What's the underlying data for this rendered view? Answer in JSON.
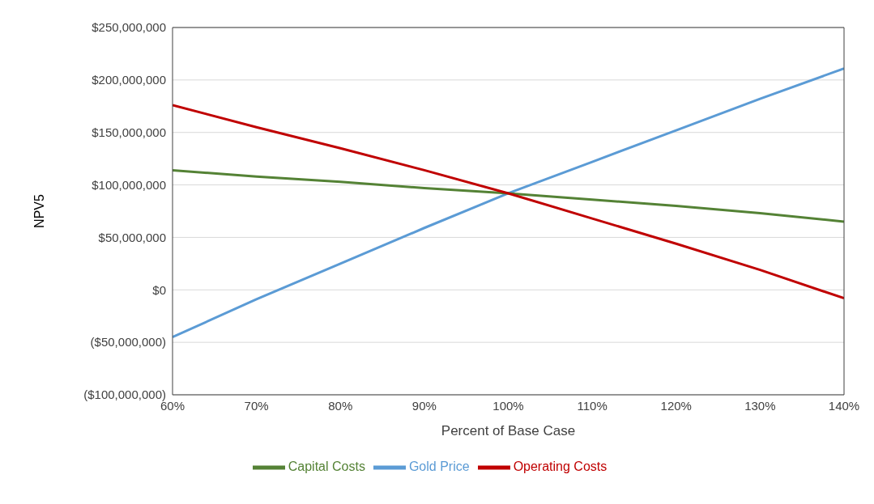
{
  "chart_data": {
    "type": "line",
    "xlabel": "Percent of Base Case",
    "ylabel": "NPV5",
    "x": [
      60,
      70,
      80,
      90,
      100,
      110,
      120,
      130,
      140
    ],
    "xlim": [
      60,
      140
    ],
    "xticks": [
      {
        "value": 60,
        "label": "60%"
      },
      {
        "value": 70,
        "label": "70%"
      },
      {
        "value": 80,
        "label": "80%"
      },
      {
        "value": 90,
        "label": "90%"
      },
      {
        "value": 100,
        "label": "100%"
      },
      {
        "value": 110,
        "label": "110%"
      },
      {
        "value": 120,
        "label": "120%"
      },
      {
        "value": 130,
        "label": "130%"
      },
      {
        "value": 140,
        "label": "140%"
      }
    ],
    "ylim": [
      -100000000,
      250000000
    ],
    "yticks": [
      {
        "value": -100000000,
        "label": "($100,000,000)"
      },
      {
        "value": -50000000,
        "label": "($50,000,000)"
      },
      {
        "value": 0,
        "label": "$0"
      },
      {
        "value": 50000000,
        "label": "$50,000,000"
      },
      {
        "value": 100000000,
        "label": "$100,000,000"
      },
      {
        "value": 150000000,
        "label": "$150,000,000"
      },
      {
        "value": 200000000,
        "label": "$200,000,000"
      },
      {
        "value": 250000000,
        "label": "$250,000,000"
      }
    ],
    "grid": "y",
    "legend": "bottom",
    "marker": "none",
    "line_style": "solid",
    "series": [
      {
        "name": "Gold Price",
        "color": "#5b9bd5",
        "values": [
          -45000000,
          -9000000,
          25000000,
          59000000,
          92000000,
          122000000,
          152000000,
          182000000,
          211000000
        ]
      },
      {
        "name": "Capital Costs",
        "color": "#548235",
        "values": [
          114000000,
          108000000,
          103000000,
          97000000,
          92000000,
          86000000,
          80000000,
          73000000,
          65000000
        ]
      },
      {
        "name": "Operating Costs",
        "color": "#c00000",
        "values": [
          176000000,
          155000000,
          135000000,
          114000000,
          92000000,
          68000000,
          44000000,
          19000000,
          -8000000
        ]
      }
    ]
  }
}
